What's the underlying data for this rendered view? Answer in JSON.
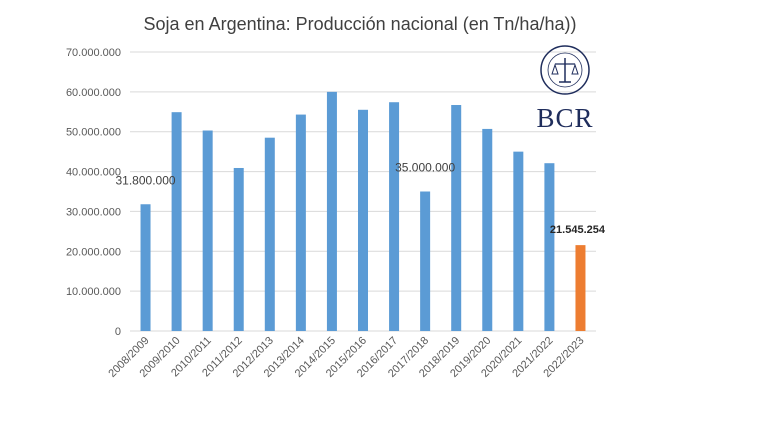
{
  "chart_data": {
    "type": "bar",
    "title": "Soja en Argentina: Producción nacional (en Tn/ha/ha))",
    "xlabel": "",
    "ylabel": "",
    "ylim": [
      0,
      70000000
    ],
    "grid": true,
    "categories": [
      "2008/2009",
      "2009/2010",
      "2010/2011",
      "2011/2012",
      "2012/2013",
      "2013/2014",
      "2014/2015",
      "2015/2016",
      "2016/2017",
      "2017/2018",
      "2018/2019",
      "2019/2020",
      "2020/2021",
      "2021/2022",
      "2022/2023"
    ],
    "values": [
      31800000,
      54900000,
      50300000,
      40900000,
      48500000,
      54300000,
      60000000,
      55500000,
      57400000,
      35000000,
      56700000,
      50700000,
      45000000,
      42100000,
      21545254
    ],
    "colors": [
      "#5b9bd5",
      "#5b9bd5",
      "#5b9bd5",
      "#5b9bd5",
      "#5b9bd5",
      "#5b9bd5",
      "#5b9bd5",
      "#5b9bd5",
      "#5b9bd5",
      "#5b9bd5",
      "#5b9bd5",
      "#5b9bd5",
      "#5b9bd5",
      "#5b9bd5",
      "#ed7d31"
    ],
    "yticks": [
      "0",
      "10.000.000",
      "20.000.000",
      "30.000.000",
      "40.000.000",
      "50.000.000",
      "60.000.000",
      "70.000.000"
    ],
    "data_labels": [
      {
        "index": 0,
        "text": "31.800.000",
        "bold": false
      },
      {
        "index": 9,
        "text": "35.000.000",
        "bold": false
      },
      {
        "index": 14,
        "text": "21.545.254",
        "bold": true
      }
    ]
  },
  "logo": {
    "text": "BCR",
    "seal_text": "Bolsa de Comercio de Rosario"
  }
}
